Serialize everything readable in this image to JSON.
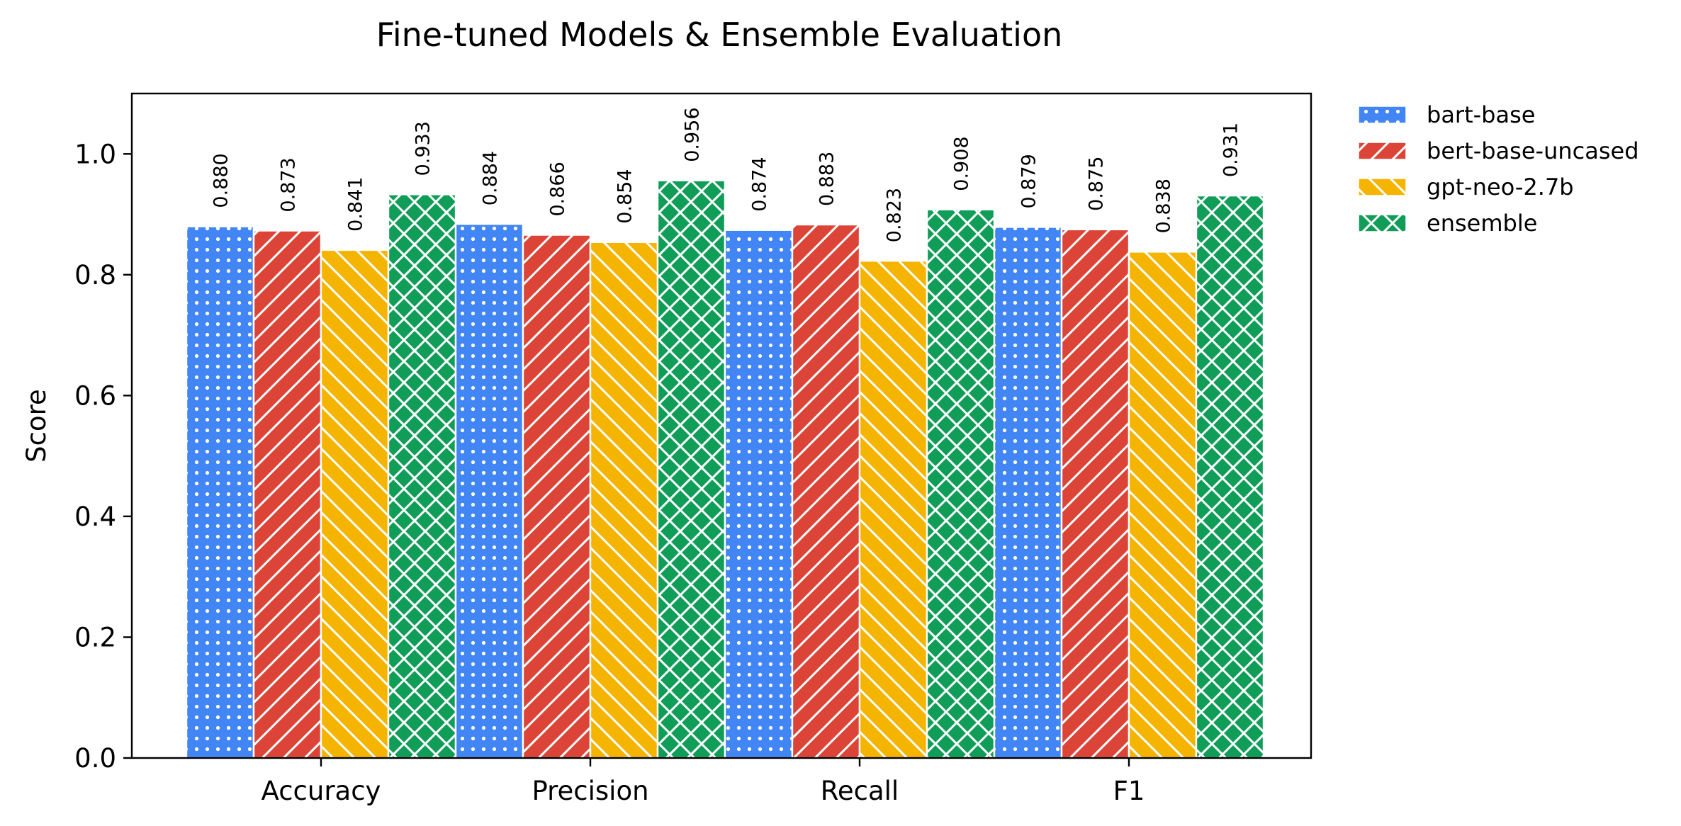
{
  "chart_data": {
    "type": "bar",
    "title": "Fine-tuned Models & Ensemble Evaluation",
    "xlabel": "",
    "ylabel": "Score",
    "ylim": [
      0,
      1.1
    ],
    "yticks": [
      "0.0",
      "0.2",
      "0.4",
      "0.6",
      "0.8",
      "1.0"
    ],
    "categories": [
      "Accuracy",
      "Precision",
      "Recall",
      "F1"
    ],
    "legend_position": "outside-top-right",
    "grid": false,
    "series": [
      {
        "name": "bart-base",
        "color": "#4285F4",
        "hatch": "dots",
        "values": [
          0.88,
          0.884,
          0.874,
          0.879
        ],
        "labels": [
          "0.880",
          "0.884",
          "0.874",
          "0.879"
        ]
      },
      {
        "name": "bert-base-uncased",
        "color": "#DB4437",
        "hatch": "diagonal",
        "values": [
          0.873,
          0.866,
          0.883,
          0.875
        ],
        "labels": [
          "0.873",
          "0.866",
          "0.883",
          "0.875"
        ]
      },
      {
        "name": "gpt-neo-2.7b",
        "color": "#F4B400",
        "hatch": "back-diagonal",
        "values": [
          0.841,
          0.854,
          0.823,
          0.838
        ],
        "labels": [
          "0.841",
          "0.854",
          "0.823",
          "0.838"
        ]
      },
      {
        "name": "ensemble",
        "color": "#0F9D58",
        "hatch": "crosshatch",
        "values": [
          0.933,
          0.956,
          0.908,
          0.931
        ],
        "labels": [
          "0.933",
          "0.956",
          "0.908",
          "0.931"
        ]
      }
    ]
  }
}
